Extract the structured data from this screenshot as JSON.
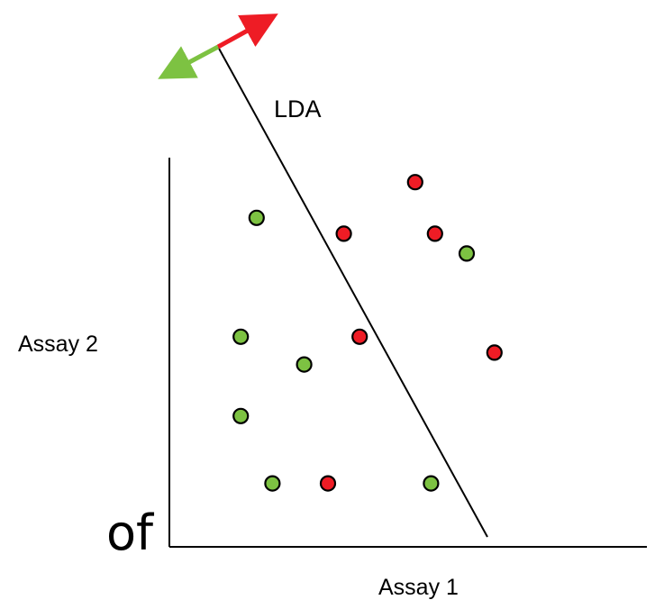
{
  "labels": {
    "lda": "LDA",
    "y_axis": "Assay 2",
    "x_axis": "Assay 1",
    "edge_text": "of"
  },
  "colors": {
    "class_a": "#7dc242",
    "class_b": "#ee1c25",
    "line": "#000000"
  },
  "points": [
    {
      "cls": "b",
      "a1": 6.2,
      "a2": 9.2
    },
    {
      "cls": "a",
      "a1": 2.2,
      "a2": 8.3
    },
    {
      "cls": "b",
      "a1": 4.4,
      "a2": 7.9
    },
    {
      "cls": "b",
      "a1": 6.7,
      "a2": 7.9
    },
    {
      "cls": "a",
      "a1": 7.5,
      "a2": 7.4
    },
    {
      "cls": "a",
      "a1": 1.8,
      "a2": 5.3
    },
    {
      "cls": "b",
      "a1": 4.8,
      "a2": 5.3
    },
    {
      "cls": "b",
      "a1": 8.2,
      "a2": 4.9
    },
    {
      "cls": "a",
      "a1": 3.4,
      "a2": 4.6
    },
    {
      "cls": "a",
      "a1": 1.8,
      "a2": 3.3
    },
    {
      "cls": "a",
      "a1": 2.6,
      "a2": 1.6
    },
    {
      "cls": "b",
      "a1": 4.0,
      "a2": 1.6
    },
    {
      "cls": "a",
      "a1": 6.6,
      "a2": 1.6
    }
  ]
}
